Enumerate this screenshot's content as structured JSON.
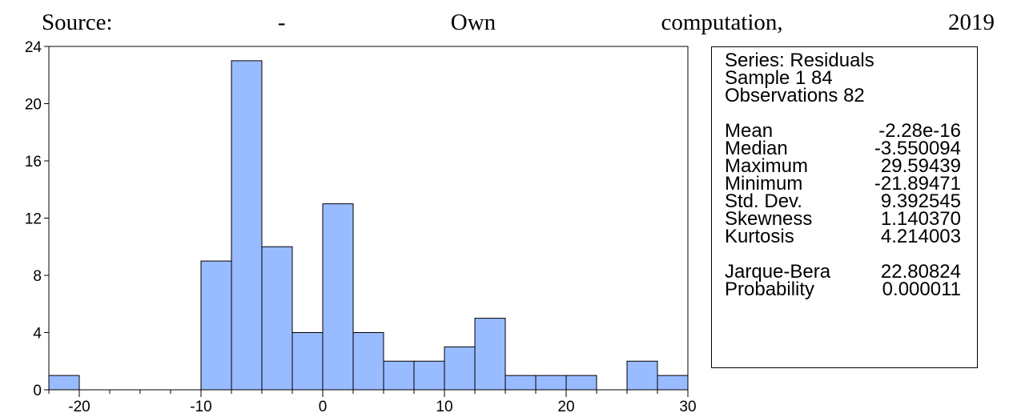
{
  "source_line": [
    "Source:",
    "-",
    "Own",
    "computation,",
    "2019"
  ],
  "chart_data": {
    "type": "bar",
    "bin_edges": [
      -22.5,
      -20,
      -17.5,
      -15,
      -12.5,
      -10,
      -7.5,
      -5,
      -2.5,
      0,
      2.5,
      5,
      7.5,
      10,
      12.5,
      15,
      17.5,
      20,
      22.5,
      25,
      27.5,
      30
    ],
    "values": [
      1,
      0,
      0,
      0,
      0,
      9,
      23,
      10,
      4,
      13,
      4,
      2,
      2,
      3,
      5,
      1,
      1,
      1,
      0,
      2,
      1
    ],
    "xlim": [
      -22.5,
      30
    ],
    "ylim": [
      0,
      24
    ],
    "x_ticks": [
      -20,
      -10,
      0,
      10,
      20,
      30
    ],
    "y_ticks": [
      0,
      4,
      8,
      12,
      16,
      20,
      24
    ],
    "bar_color": "#99bbff",
    "title": "",
    "xlabel": "",
    "ylabel": ""
  },
  "stats": {
    "series": "Series: Residuals",
    "sample": "Sample 1 84",
    "observations": "Observations 82",
    "rows": [
      {
        "label": "Mean",
        "value": "-2.28e-16"
      },
      {
        "label": "Median",
        "value": "-3.550094"
      },
      {
        "label": "Maximum",
        "value": "29.59439"
      },
      {
        "label": "Minimum",
        "value": "-21.89471"
      },
      {
        "label": "Std. Dev.",
        "value": "9.392545"
      },
      {
        "label": "Skewness",
        "value": "1.140370"
      },
      {
        "label": "Kurtosis",
        "value": "4.214003"
      }
    ],
    "tests": [
      {
        "label": "Jarque-Bera",
        "value": "22.80824"
      },
      {
        "label": "Probability",
        "value": "0.000011"
      }
    ]
  }
}
